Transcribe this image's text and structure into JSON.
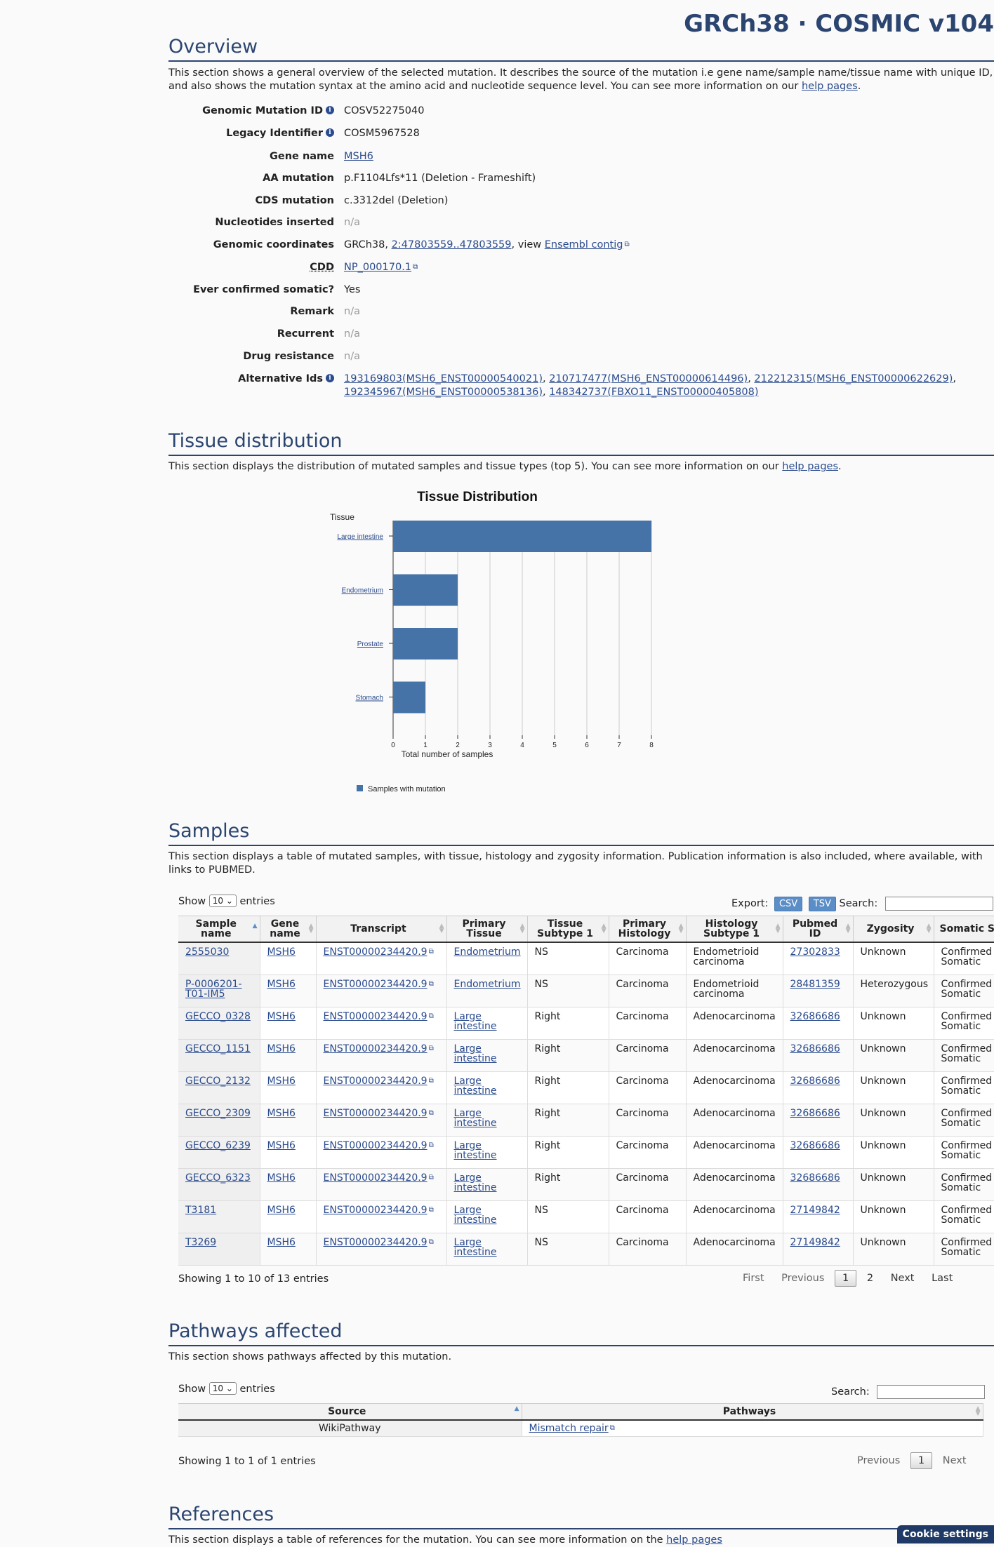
{
  "header": {
    "title": "GRCh38 · COSMIC v104"
  },
  "overview": {
    "title": "Overview",
    "desc_prefix": "This section shows a general overview of the selected mutation. It describes the source of the mutation i.e gene name/sample name/tissue name with unique ID, and also shows the mutation syntax at the amino acid and nucleotide sequence level. You can see more information on our ",
    "desc_link": "help pages",
    "desc_suffix": ".",
    "genomic_mutation_id": {
      "label": "Genomic Mutation ID",
      "value": "COSV52275040"
    },
    "legacy_identifier": {
      "label": "Legacy Identifier",
      "value": "COSM5967528"
    },
    "gene_name": {
      "label": "Gene name",
      "value": "MSH6"
    },
    "aa_mutation": {
      "label": "AA mutation",
      "value": "p.F1104Lfs*11 (Deletion - Frameshift)"
    },
    "cds_mutation": {
      "label": "CDS mutation",
      "value": "c.3312del (Deletion)"
    },
    "nucleotides_inserted": {
      "label": "Nucleotides inserted",
      "value": "n/a"
    },
    "genomic_coordinates": {
      "label": "Genomic coordinates",
      "prefix": "GRCh38, ",
      "link": "2:47803559..47803559",
      "mid": ", view ",
      "link2": "Ensembl contig"
    },
    "cdd": {
      "label": "CDD",
      "value": "NP_000170.1"
    },
    "ever_confirmed_somatic": {
      "label": "Ever confirmed somatic?",
      "value": "Yes"
    },
    "remark": {
      "label": "Remark",
      "value": "n/a"
    },
    "recurrent": {
      "label": "Recurrent",
      "value": "n/a"
    },
    "drug_resistance": {
      "label": "Drug resistance",
      "value": "n/a"
    },
    "alternative_ids": {
      "label": "Alternative Ids",
      "items": [
        "193169803(MSH6_ENST00000540021)",
        "210717477(MSH6_ENST00000614496)",
        "212212315(MSH6_ENST00000622629)",
        "192345967(MSH6_ENST00000538136)",
        "148342737(FBXO11_ENST00000405808)"
      ]
    }
  },
  "tissue": {
    "title": "Tissue distribution",
    "desc_prefix": "This section displays the distribution of mutated samples and tissue types (top 5). You can see more information on our ",
    "desc_link": "help pages",
    "desc_suffix": "."
  },
  "chart_data": {
    "type": "bar",
    "orientation": "horizontal",
    "title": "Tissue Distribution",
    "ylabel": "Tissue",
    "xlabel": "Total number of samples",
    "categories": [
      "Large intestine",
      "Endometrium",
      "Prostate",
      "Stomach"
    ],
    "series": [
      {
        "name": "Samples with mutation",
        "values": [
          8,
          2,
          2,
          1
        ]
      }
    ],
    "xlim": [
      0,
      8
    ],
    "xticks": [
      "0",
      "1",
      "2",
      "3",
      "4",
      "5",
      "6",
      "7",
      "8"
    ],
    "grid": true,
    "legend": "bottom-left",
    "color": "#4573a7"
  },
  "samples": {
    "title": "Samples",
    "desc": "This section displays a table of mutated samples, with tissue, histology and zygosity information. Publication information is also included, where available, with links to PUBMED.",
    "show_label": "Show",
    "entries_value": "10",
    "entries_label": "entries",
    "export_label": "Export:",
    "csv": "CSV",
    "tsv": "TSV",
    "search_label": "Search:",
    "columns": [
      "Sample name",
      "Gene name",
      "Transcript",
      "Primary Tissue",
      "Tissue Subtype 1",
      "Primary Histology",
      "Histology Subtype 1",
      "Pubmed ID",
      "Zygosity",
      "Somatic Status"
    ],
    "rows": [
      [
        "2555030",
        "MSH6",
        "ENST00000234420.9",
        "Endometrium",
        "NS",
        "Carcinoma",
        "Endometrioid carcinoma",
        "27302833",
        "Unknown",
        "Confirmed Somatic"
      ],
      [
        "P-0006201-T01-IM5",
        "MSH6",
        "ENST00000234420.9",
        "Endometrium",
        "NS",
        "Carcinoma",
        "Endometrioid carcinoma",
        "28481359",
        "Heterozygous",
        "Confirmed Somatic"
      ],
      [
        "GECCO_0328",
        "MSH6",
        "ENST00000234420.9",
        "Large intestine",
        "Right",
        "Carcinoma",
        "Adenocarcinoma",
        "32686686",
        "Unknown",
        "Confirmed Somatic"
      ],
      [
        "GECCO_1151",
        "MSH6",
        "ENST00000234420.9",
        "Large intestine",
        "Right",
        "Carcinoma",
        "Adenocarcinoma",
        "32686686",
        "Unknown",
        "Confirmed Somatic"
      ],
      [
        "GECCO_2132",
        "MSH6",
        "ENST00000234420.9",
        "Large intestine",
        "Right",
        "Carcinoma",
        "Adenocarcinoma",
        "32686686",
        "Unknown",
        "Confirmed Somatic"
      ],
      [
        "GECCO_2309",
        "MSH6",
        "ENST00000234420.9",
        "Large intestine",
        "Right",
        "Carcinoma",
        "Adenocarcinoma",
        "32686686",
        "Unknown",
        "Confirmed Somatic"
      ],
      [
        "GECCO_6239",
        "MSH6",
        "ENST00000234420.9",
        "Large intestine",
        "Right",
        "Carcinoma",
        "Adenocarcinoma",
        "32686686",
        "Unknown",
        "Confirmed Somatic"
      ],
      [
        "GECCO_6323",
        "MSH6",
        "ENST00000234420.9",
        "Large intestine",
        "Right",
        "Carcinoma",
        "Adenocarcinoma",
        "32686686",
        "Unknown",
        "Confirmed Somatic"
      ],
      [
        "T3181",
        "MSH6",
        "ENST00000234420.9",
        "Large intestine",
        "NS",
        "Carcinoma",
        "Adenocarcinoma",
        "27149842",
        "Unknown",
        "Confirmed Somatic"
      ],
      [
        "T3269",
        "MSH6",
        "ENST00000234420.9",
        "Large intestine",
        "NS",
        "Carcinoma",
        "Adenocarcinoma",
        "27149842",
        "Unknown",
        "Confirmed Somatic"
      ]
    ],
    "info": "Showing 1 to 10 of 13 entries",
    "pager": {
      "first": "First",
      "previous": "Previous",
      "page1": "1",
      "page2": "2",
      "next": "Next",
      "last": "Last"
    }
  },
  "pathways": {
    "title": "Pathways affected",
    "desc": "This section shows pathways affected by this mutation.",
    "show_label": "Show",
    "entries_value": "10",
    "entries_label": "entries",
    "search_label": "Search:",
    "columns": [
      "Source",
      "Pathways"
    ],
    "rows": [
      [
        "WikiPathway",
        "Mismatch repair"
      ]
    ],
    "info": "Showing 1 to 1 of 1 entries",
    "pager": {
      "previous": "Previous",
      "page1": "1",
      "next": "Next"
    }
  },
  "references": {
    "title": "References",
    "desc_prefix": "This section displays a table of references for the mutation. You can see more information on the ",
    "desc_link": "help pages"
  },
  "cookie": {
    "label": "Cookie settings"
  }
}
